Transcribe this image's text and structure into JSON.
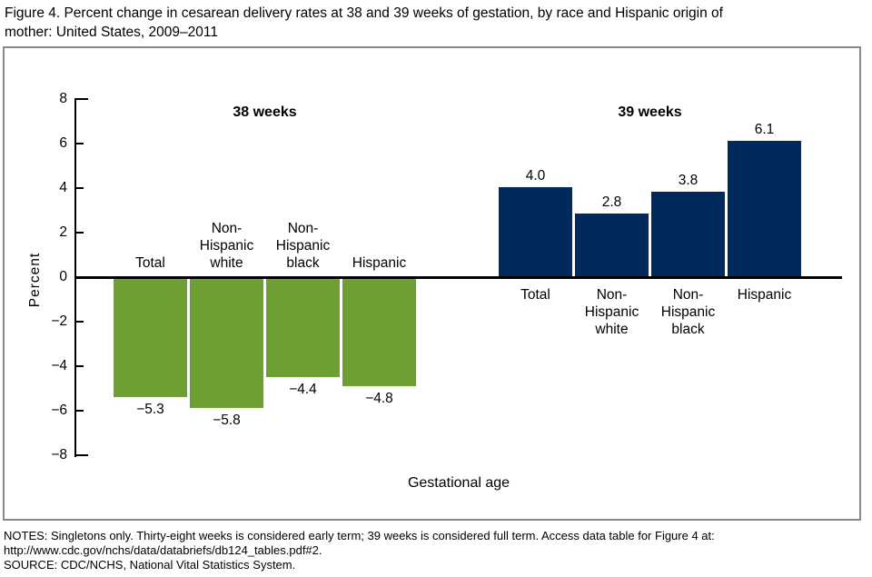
{
  "title": "Figure 4. Percent change in cesarean delivery rates at 38 and 39 weeks of gestation, by race and Hispanic origin of\nmother: United States, 2009–2011",
  "notes": "NOTES: Singletons only. Thirty-eight weeks is considered early term; 39 weeks is considered full term. Access data table for Figure 4 at:\nhttp://www.cdc.gov/nchs/data/databriefs/db124_tables.pdf#2.",
  "source": "SOURCE: CDC/NCHS, National Vital Statistics System.",
  "colors": {
    "green_38_weeks": "#6e9e34",
    "navy_39_weeks": "#02295b",
    "axis": "#000000",
    "frame_border": "#8a8a8a"
  },
  "chart_data": {
    "type": "bar",
    "title": "Figure 4. Percent change in cesarean delivery rates at 38 and 39 weeks of gestation, by race and Hispanic origin of mother: United States, 2009–2011",
    "xlabel": "Gestational age",
    "ylabel": "Percent",
    "ylim": [
      -8,
      8
    ],
    "grid": false,
    "legend": "none",
    "yticks": [
      {
        "value": 8,
        "label": "8"
      },
      {
        "value": 6,
        "label": "6"
      },
      {
        "value": 4,
        "label": "4"
      },
      {
        "value": 2,
        "label": "2"
      },
      {
        "value": 0,
        "label": "0"
      },
      {
        "value": -2,
        "label": "−2"
      },
      {
        "value": -4,
        "label": "−4"
      },
      {
        "value": -6,
        "label": "−6"
      },
      {
        "value": -8,
        "label": "−8"
      }
    ],
    "groups": [
      {
        "title": "38 weeks",
        "color_key": "green_38_weeks",
        "bars": [
          {
            "category": "Total",
            "value": -5.3,
            "value_label": "−5.3"
          },
          {
            "category": "Non-\nHispanic\nwhite",
            "value": -5.8,
            "value_label": "−5.8"
          },
          {
            "category": "Non-\nHispanic\nblack",
            "value": -4.4,
            "value_label": "−4.4"
          },
          {
            "category": "Hispanic",
            "value": -4.8,
            "value_label": "−4.8"
          }
        ]
      },
      {
        "title": "39 weeks",
        "color_key": "navy_39_weeks",
        "bars": [
          {
            "category": "Total",
            "value": 4.0,
            "value_label": "4.0"
          },
          {
            "category": "Non-\nHispanic\nwhite",
            "value": 2.8,
            "value_label": "2.8"
          },
          {
            "category": "Non-\nHispanic\nblack",
            "value": 3.8,
            "value_label": "3.8"
          },
          {
            "category": "Hispanic",
            "value": 6.1,
            "value_label": "6.1"
          }
        ]
      }
    ]
  }
}
